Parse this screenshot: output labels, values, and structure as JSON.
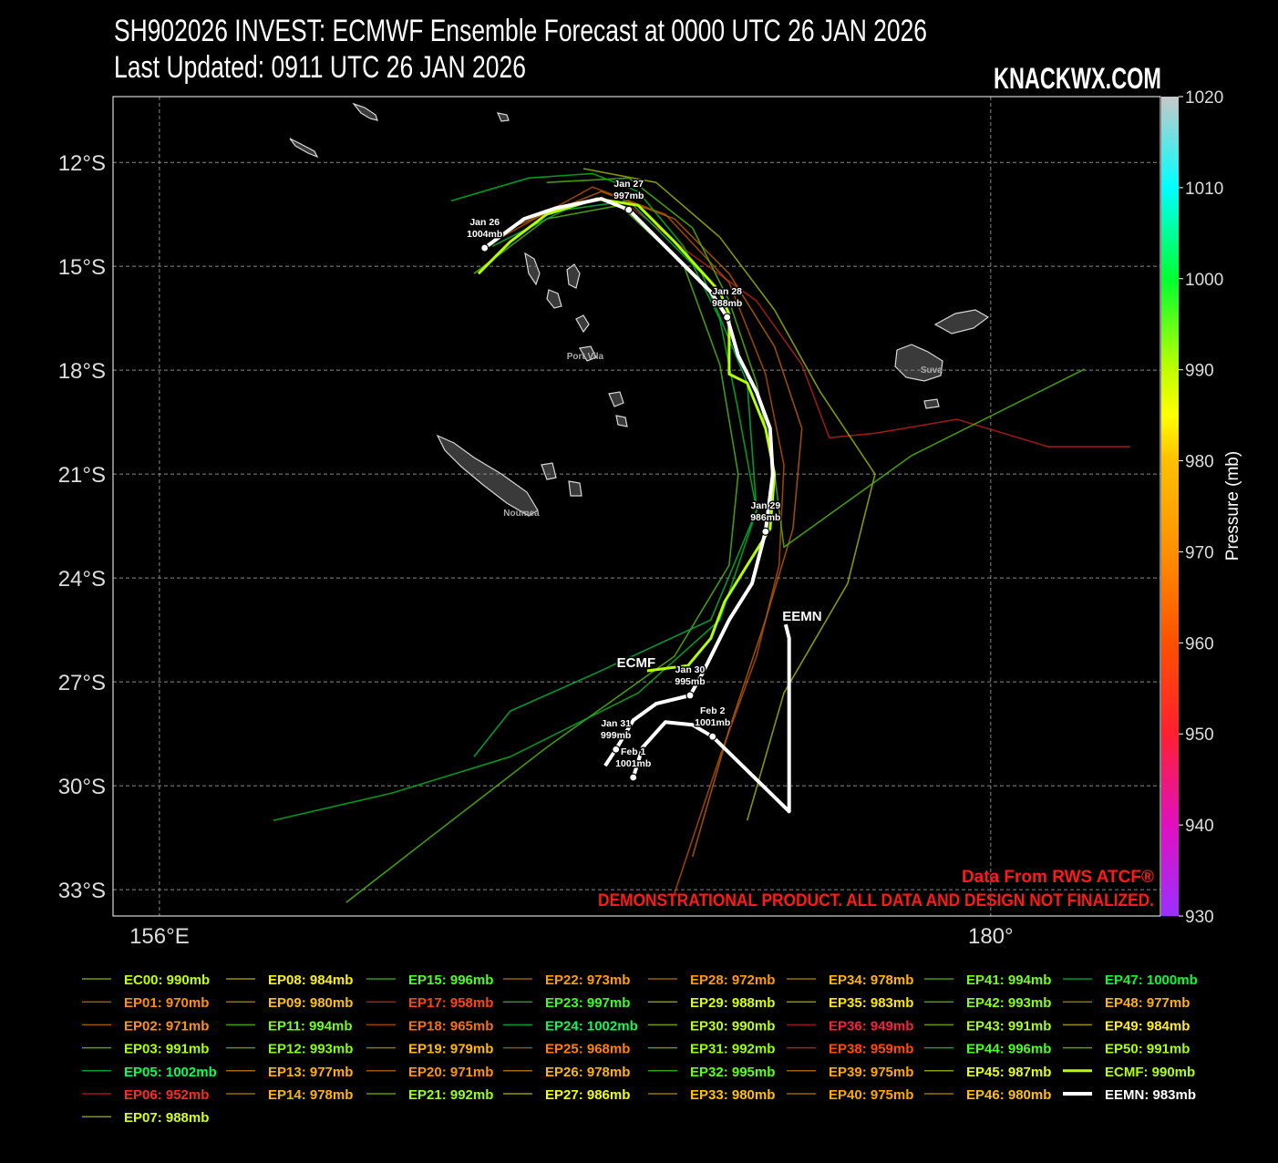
{
  "chart_data": {
    "type": "track_map",
    "title": "SH902026 INVEST: ECMWF Ensemble Forecast at 0000 UTC 26 JAN 2026",
    "subtitle": "Last Updated: 0911 UTC 26 JAN 2026",
    "brand": "KNACKWX.COM",
    "credit": "Data From RWS ATCF®",
    "disclaimer": "DEMONSTRATIONAL PRODUCT. ALL DATA AND DESIGN NOT FINALIZED.",
    "xlim": [
      154.66,
      184.9
    ],
    "ylim": [
      -33.76,
      -10.1
    ],
    "xticks": [
      {
        "value": 156,
        "label": "156°E"
      },
      {
        "value": 180,
        "label": "180°"
      }
    ],
    "yticks": [
      {
        "value": -12,
        "label": "12°S"
      },
      {
        "value": -15,
        "label": "15°S"
      },
      {
        "value": -18,
        "label": "18°S"
      },
      {
        "value": -21,
        "label": "21°S"
      },
      {
        "value": -24,
        "label": "24°S"
      },
      {
        "value": -27,
        "label": "27°S"
      },
      {
        "value": -30,
        "label": "30°S"
      },
      {
        "value": -33,
        "label": "33°S"
      }
    ],
    "grid": true,
    "colorbar": {
      "label": "Pressure (mb)",
      "lim": [
        930,
        1020
      ],
      "ticks": [
        930,
        940,
        950,
        960,
        970,
        980,
        990,
        1000,
        1010,
        1020
      ],
      "stops": [
        [
          930,
          "#9b30ff"
        ],
        [
          940,
          "#e010c0"
        ],
        [
          950,
          "#ff2030"
        ],
        [
          960,
          "#ff5000"
        ],
        [
          970,
          "#ff9000"
        ],
        [
          980,
          "#ffc000"
        ],
        [
          985,
          "#ffff00"
        ],
        [
          990,
          "#c0ff00"
        ],
        [
          1000,
          "#00ff30"
        ],
        [
          1010,
          "#00ffff"
        ],
        [
          1020,
          "#c8c8c8"
        ]
      ]
    },
    "places": [
      {
        "name": "Port Vila",
        "lon": 168.29,
        "lat": -17.58
      },
      {
        "name": "Suva",
        "lon": 178.29,
        "lat": -17.97
      },
      {
        "name": "Noumea",
        "lon": 166.45,
        "lat": -22.1
      }
    ],
    "points": [
      {
        "date": "Jan 26",
        "value": 1004,
        "value_label": "1004mb",
        "lon": 165.39,
        "lat": -14.47
      },
      {
        "date": "Jan 27",
        "value": 997,
        "value_label": "997mb",
        "lon": 169.55,
        "lat": -13.37
      },
      {
        "date": "Jan 28",
        "value": 988,
        "value_label": "988mb",
        "lon": 172.39,
        "lat": -16.47
      },
      {
        "date": "Jan 29",
        "value": 986,
        "value_label": "986mb",
        "lon": 173.5,
        "lat": -22.66
      },
      {
        "date": "Jan 30",
        "value": 995,
        "value_label": "995mb",
        "lon": 171.32,
        "lat": -27.39
      },
      {
        "date": "Jan 31",
        "value": 999,
        "value_label": "999mb",
        "lon": 169.18,
        "lat": -28.95
      },
      {
        "date": "Feb  1",
        "value": 1001,
        "value_label": "1001mb",
        "lon": 169.68,
        "lat": -29.76
      },
      {
        "date": "Feb  2",
        "value": 1001,
        "value_label": "1001mb",
        "lon": 171.97,
        "lat": -28.58
      }
    ],
    "series": [
      {
        "label": "EC00: 990mb",
        "min_pressure": 990
      },
      {
        "label": "EP01: 970mb",
        "min_pressure": 970
      },
      {
        "label": "EP02: 971mb",
        "min_pressure": 971
      },
      {
        "label": "EP03: 991mb",
        "min_pressure": 991
      },
      {
        "label": "EP05: 1002mb",
        "min_pressure": 1002
      },
      {
        "label": "EP06: 952mb",
        "min_pressure": 952,
        "lon": [
          169.55,
          171.39,
          173.24,
          174.55,
          175.34,
          176.66,
          179.03,
          181.66,
          184.03
        ],
        "lat": [
          -13.24,
          -14.68,
          -16.0,
          -17.84,
          -19.95,
          -19.82,
          -19.42,
          -20.21,
          -20.21
        ]
      },
      {
        "label": "EP07: 988mb",
        "min_pressure": 988
      },
      {
        "label": "EP08: 984mb",
        "min_pressure": 984
      },
      {
        "label": "EP09: 980mb",
        "min_pressure": 980
      },
      {
        "label": "EP11: 994mb",
        "min_pressure": 994,
        "lon": [
          165.08,
          167.18,
          169.29,
          171.13,
          172.18,
          172.71,
          172.45,
          170.87,
          167.18,
          163.76,
          161.39
        ],
        "lat": [
          -15.21,
          -13.63,
          -13.24,
          -14.95,
          -17.84,
          -21.0,
          -23.63,
          -26.26,
          -28.89,
          -31.53,
          -33.37
        ]
      },
      {
        "label": "EP12: 993mb",
        "min_pressure": 993
      },
      {
        "label": "EP13: 977mb",
        "min_pressure": 977
      },
      {
        "label": "EP14: 978mb",
        "min_pressure": 978
      },
      {
        "label": "EP15: 996mb",
        "min_pressure": 996
      },
      {
        "label": "EP17: 958mb",
        "min_pressure": 958
      },
      {
        "label": "EP18: 965mb",
        "min_pressure": 965,
        "lon": [
          165.87,
          168.5,
          170.61,
          172.45,
          173.5,
          174.03,
          173.89,
          173.24,
          172.18,
          170.87
        ],
        "lat": [
          -14.16,
          -12.71,
          -13.5,
          -15.47,
          -18.11,
          -20.74,
          -23.63,
          -26.26,
          -29.16,
          -33.11
        ]
      },
      {
        "label": "EP19: 979mb",
        "min_pressure": 979
      },
      {
        "label": "EP20: 971mb",
        "min_pressure": 971
      },
      {
        "label": "EP21: 992mb",
        "min_pressure": 992
      },
      {
        "label": "EP22: 973mb",
        "min_pressure": 973
      },
      {
        "label": "EP23: 997mb",
        "min_pressure": 997
      },
      {
        "label": "EP24: 1002mb",
        "min_pressure": 1002,
        "lon": [
          165.61,
          167.71,
          169.55,
          171.66,
          172.97,
          173.24,
          171.92,
          168.5,
          166.13,
          165.08
        ],
        "lat": [
          -14.42,
          -13.37,
          -13.11,
          -15.21,
          -18.37,
          -22.05,
          -25.21,
          -26.79,
          -27.84,
          -29.16
        ]
      },
      {
        "label": "EP25: 968mb",
        "min_pressure": 968,
        "lon": [
          166.13,
          168.76,
          170.87,
          172.45,
          173.76,
          174.55,
          174.29,
          173.5,
          172.45,
          171.39
        ],
        "lat": [
          -13.89,
          -12.84,
          -13.63,
          -15.21,
          -17.32,
          -19.68,
          -22.58,
          -25.21,
          -28.37,
          -32.05
        ]
      },
      {
        "label": "EP26: 978mb",
        "min_pressure": 978
      },
      {
        "label": "EP27: 986mb",
        "min_pressure": 986
      },
      {
        "label": "EP28: 972mb",
        "min_pressure": 972
      },
      {
        "label": "EP29: 988mb",
        "min_pressure": 988,
        "lon": [
          168.24,
          170.34,
          172.18,
          173.76,
          175.08,
          176.66,
          175.87,
          174.03,
          172.97
        ],
        "lat": [
          -12.18,
          -12.58,
          -14.16,
          -16.26,
          -18.63,
          -21.0,
          -24.16,
          -27.32,
          -31.0
        ]
      },
      {
        "label": "EP30: 990mb",
        "min_pressure": 990
      },
      {
        "label": "EP31: 992mb",
        "min_pressure": 992
      },
      {
        "label": "EP32: 995mb",
        "min_pressure": 995
      },
      {
        "label": "EP33: 980mb",
        "min_pressure": 980
      },
      {
        "label": "EP34: 978mb",
        "min_pressure": 978
      },
      {
        "label": "EP35: 983mb",
        "min_pressure": 983
      },
      {
        "label": "EP36: 949mb",
        "min_pressure": 949
      },
      {
        "label": "EP38: 959mb",
        "min_pressure": 959
      },
      {
        "label": "EP39: 975mb",
        "min_pressure": 975
      },
      {
        "label": "EP40: 975mb",
        "min_pressure": 975
      },
      {
        "label": "EP41: 994mb",
        "min_pressure": 994,
        "lon": [
          167.18,
          169.55,
          171.39,
          172.45,
          173.24,
          173.76,
          174.03,
          177.71,
          182.71
        ],
        "lat": [
          -12.58,
          -12.45,
          -13.89,
          -16.0,
          -18.37,
          -21.0,
          -23.11,
          -20.47,
          -17.97
        ]
      },
      {
        "label": "EP42: 993mb",
        "min_pressure": 993
      },
      {
        "label": "EP43: 991mb",
        "min_pressure": 991
      },
      {
        "label": "EP44: 996mb",
        "min_pressure": 996
      },
      {
        "label": "EP45: 987mb",
        "min_pressure": 987
      },
      {
        "label": "EP46: 980mb",
        "min_pressure": 980
      },
      {
        "label": "EP47: 1000mb",
        "min_pressure": 1000,
        "lon": [
          164.42,
          166.66,
          168.5,
          169.82,
          171.13,
          172.18,
          172.71,
          173.24,
          172.18,
          169.82,
          166.13,
          162.71,
          159.29
        ],
        "lat": [
          -13.11,
          -12.45,
          -12.32,
          -12.84,
          -14.42,
          -16.53,
          -19.16,
          -22.05,
          -25.21,
          -27.32,
          -29.16,
          -30.21,
          -31.0
        ]
      },
      {
        "label": "EP48: 977mb",
        "min_pressure": 977
      },
      {
        "label": "EP49: 984mb",
        "min_pressure": 984
      },
      {
        "label": "EP50: 991mb",
        "min_pressure": 991
      },
      {
        "label": "ECMF: 990mb",
        "min_pressure": 990,
        "color": "#b4ff00",
        "map_label": "ECMF",
        "lon": [
          165.21,
          166.13,
          167.18,
          168.63,
          169.82,
          170.87,
          172.18,
          172.45,
          172.45,
          172.97,
          173.5,
          173.76,
          173.63,
          172.97,
          172.32,
          171.92,
          171.26,
          170.08
        ],
        "lat": [
          -15.21,
          -14.29,
          -13.5,
          -13.05,
          -13.24,
          -14.29,
          -15.74,
          -16.39,
          -18.11,
          -18.37,
          -19.68,
          -21.0,
          -22.58,
          -23.63,
          -24.68,
          -25.74,
          -26.53,
          -26.68
        ]
      },
      {
        "label": "EEMN: 983mb",
        "min_pressure": 983,
        "color": "#ffffff",
        "map_label": "EEMN",
        "lon": [
          165.39,
          166.53,
          167.45,
          168.76,
          169.55,
          170.34,
          171.92,
          172.39,
          172.71,
          173.24,
          173.63,
          173.71,
          173.5,
          173.11,
          172.45,
          171.66,
          171.32,
          170.34,
          169.68,
          169.18,
          168.87,
          null,
          169.68,
          169.95,
          170.61,
          171.39,
          171.97,
          174.18,
          174.18,
          174.08
        ],
        "lat": [
          -14.47,
          -13.63,
          -13.32,
          -13.05,
          -13.37,
          -14.16,
          -15.74,
          -16.47,
          -17.58,
          -18.63,
          -19.68,
          -21.0,
          -22.66,
          -24.16,
          -25.21,
          -26.79,
          -27.39,
          -27.63,
          -28.11,
          -28.95,
          -29.42,
          null,
          -29.76,
          -28.89,
          -28.16,
          -28.24,
          -28.58,
          -30.74,
          -25.74,
          -25.34
        ]
      }
    ]
  }
}
